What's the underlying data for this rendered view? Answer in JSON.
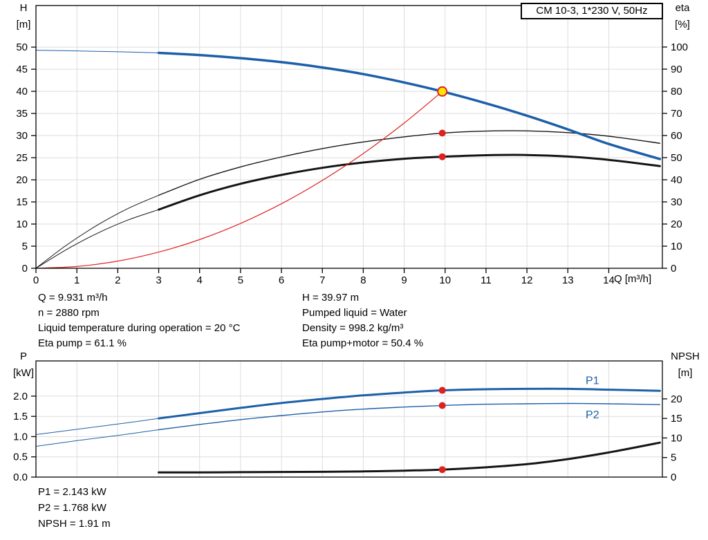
{
  "model_box": "CM 10-3, 1*230 V, 50Hz",
  "colors": {
    "blue": "#1c5fa8",
    "black": "#141414",
    "red": "#e01f1f",
    "duty_fill": "#ffe600",
    "grid": "#dcdcdc",
    "frame": "#000000"
  },
  "annotations": {
    "left": [
      "Q = 9.931 m³/h",
      "n = 2880 rpm",
      "Liquid temperature during operation = 20 °C",
      "Eta pump = 61.1 %"
    ],
    "right": [
      "H = 39.97 m",
      "Pumped liquid = Water",
      "Density = 998.2 kg/m³",
      "Eta pump+motor = 50.4 %"
    ],
    "bottom": [
      "P1 = 2.143 kW",
      "P2 = 1.768 kW",
      "NPSH = 1.91 m"
    ]
  },
  "chart_data": [
    {
      "type": "line",
      "name": "qh-eta-chart",
      "title": "CM 10-3, 1*230 V, 50Hz",
      "x_axis": {
        "label": "Q [m³/h]",
        "min": 0,
        "max": 15.31,
        "ticks": [
          0,
          1,
          2,
          3,
          4,
          5,
          6,
          7,
          8,
          9,
          10,
          11,
          12,
          13,
          14
        ],
        "show_labels": true
      },
      "y_left": {
        "label": "H",
        "unit": "[m]",
        "min": 0,
        "max": 59.4,
        "ticks": [
          0,
          5,
          10,
          15,
          20,
          25,
          30,
          35,
          40,
          45,
          50
        ]
      },
      "y_right": {
        "label": "eta",
        "unit": "[%]",
        "min": 0,
        "max": 118.75,
        "ticks": [
          0,
          10,
          20,
          30,
          40,
          50,
          60,
          70,
          80,
          90,
          100
        ]
      },
      "series": [
        {
          "name": "eta-pump-min-flow",
          "axis": "right",
          "color": "black",
          "width": 1,
          "points": [
            [
              0,
              0
            ],
            [
              0.75,
              10.5
            ],
            [
              1.5,
              19.5
            ],
            [
              2.25,
              27
            ],
            [
              3,
              33
            ]
          ]
        },
        {
          "name": "eta-pump-curve",
          "axis": "right",
          "color": "black",
          "width": 1.4,
          "points": [
            [
              3,
              33
            ],
            [
              4,
              40.2
            ],
            [
              5,
              45.8
            ],
            [
              6,
              50.3
            ],
            [
              7,
              54.1
            ],
            [
              8,
              57.1
            ],
            [
              9,
              59.4
            ],
            [
              9.931,
              61.1
            ],
            [
              11,
              62
            ],
            [
              12,
              62.1
            ],
            [
              13,
              61.3
            ],
            [
              14,
              59.7
            ],
            [
              15.25,
              56.5
            ]
          ]
        },
        {
          "name": "eta-pump-motor-min-flow",
          "axis": "right",
          "color": "black",
          "width": 1,
          "points": [
            [
              0,
              0
            ],
            [
              0.75,
              8.5
            ],
            [
              1.5,
              15.8
            ],
            [
              2.25,
              21.8
            ],
            [
              3,
              26.5
            ]
          ]
        },
        {
          "name": "eta-pump-motor-curve",
          "axis": "right",
          "color": "black",
          "width": 3,
          "points": [
            [
              3,
              26.5
            ],
            [
              4,
              33
            ],
            [
              5,
              38.2
            ],
            [
              6,
              42.2
            ],
            [
              7,
              45.4
            ],
            [
              8,
              47.8
            ],
            [
              9,
              49.5
            ],
            [
              9.931,
              50.4
            ],
            [
              11,
              51.1
            ],
            [
              12,
              51.2
            ],
            [
              13,
              50.5
            ],
            [
              14,
              49
            ],
            [
              15.25,
              46.2
            ]
          ]
        },
        {
          "name": "system-curve",
          "axis": "left",
          "color": "red",
          "width": 1.2,
          "points": [
            [
              0,
              0
            ],
            [
              1,
              0.41
            ],
            [
              2,
              1.62
            ],
            [
              3,
              3.65
            ],
            [
              4,
              6.48
            ],
            [
              5,
              10.13
            ],
            [
              6,
              14.59
            ],
            [
              7,
              19.86
            ],
            [
              8,
              25.94
            ],
            [
              9,
              32.83
            ],
            [
              9.931,
              39.97
            ]
          ]
        },
        {
          "name": "head-curve-min-flow",
          "axis": "left",
          "color": "blue",
          "width": 1,
          "points": [
            [
              0,
              49.3
            ],
            [
              1,
              49.15
            ],
            [
              2,
              48.95
            ],
            [
              3,
              48.7
            ]
          ]
        },
        {
          "name": "head-curve",
          "axis": "left",
          "color": "blue",
          "width": 3.5,
          "points": [
            [
              3,
              48.7
            ],
            [
              4,
              48.2
            ],
            [
              5,
              47.5
            ],
            [
              6,
              46.6
            ],
            [
              7,
              45.4
            ],
            [
              8,
              43.9
            ],
            [
              9,
              42
            ],
            [
              9.931,
              39.97
            ],
            [
              11,
              37.3
            ],
            [
              12,
              34.5
            ],
            [
              13,
              31.4
            ],
            [
              14,
              28.1
            ],
            [
              15.25,
              24.7
            ]
          ]
        }
      ],
      "markers": [
        {
          "name": "eta-pump-point",
          "axis": "right",
          "x": 9.931,
          "y": 61.1,
          "style": "red-dot"
        },
        {
          "name": "eta-pump-motor-point",
          "axis": "right",
          "x": 9.931,
          "y": 50.4,
          "style": "red-dot"
        },
        {
          "name": "duty-point",
          "axis": "left",
          "x": 9.931,
          "y": 39.97,
          "style": "duty"
        }
      ],
      "labels": []
    },
    {
      "type": "line",
      "name": "power-npsh-chart",
      "title": "",
      "x_axis": {
        "label": "",
        "min": 0,
        "max": 15.31,
        "ticks": [
          1,
          2,
          3,
          4,
          5,
          6,
          7,
          8,
          9,
          10,
          11,
          12,
          13,
          14
        ],
        "show_labels": false
      },
      "y_left": {
        "label": "P",
        "unit": "[kW]",
        "min": 0,
        "max": 2.87,
        "ticks": [
          0,
          0.5,
          1,
          1.5,
          2
        ],
        "tick_labels": [
          "0.0",
          "0.5",
          "1.0",
          "1.5",
          "2.0"
        ]
      },
      "y_right": {
        "label": "NPSH",
        "unit": "[m]",
        "min": 0,
        "max": 29.7,
        "ticks": [
          0,
          5,
          10,
          15,
          20
        ]
      },
      "series": [
        {
          "name": "p2-min-flow",
          "axis": "left",
          "color": "blue",
          "width": 1,
          "points": [
            [
              0,
              0.76
            ],
            [
              1,
              0.9
            ],
            [
              2,
              1.03
            ],
            [
              3,
              1.17
            ]
          ]
        },
        {
          "name": "p2-curve",
          "axis": "left",
          "color": "blue",
          "width": 1.4,
          "points": [
            [
              3,
              1.17
            ],
            [
              4,
              1.3
            ],
            [
              5,
              1.42
            ],
            [
              6,
              1.52
            ],
            [
              7,
              1.61
            ],
            [
              8,
              1.68
            ],
            [
              9,
              1.73
            ],
            [
              9.931,
              1.768
            ],
            [
              11,
              1.8
            ],
            [
              12,
              1.81
            ],
            [
              13,
              1.82
            ],
            [
              14,
              1.81
            ],
            [
              15.25,
              1.79
            ]
          ]
        },
        {
          "name": "p1-min-flow",
          "axis": "left",
          "color": "blue",
          "width": 1,
          "points": [
            [
              0,
              1.05
            ],
            [
              1,
              1.18
            ],
            [
              2,
              1.31
            ],
            [
              3,
              1.45
            ]
          ]
        },
        {
          "name": "p1-curve",
          "axis": "left",
          "color": "blue",
          "width": 3,
          "points": [
            [
              3,
              1.45
            ],
            [
              4,
              1.58
            ],
            [
              5,
              1.71
            ],
            [
              6,
              1.83
            ],
            [
              7,
              1.93
            ],
            [
              8,
              2.02
            ],
            [
              9,
              2.09
            ],
            [
              9.931,
              2.143
            ],
            [
              11,
              2.17
            ],
            [
              12,
              2.18
            ],
            [
              13,
              2.18
            ],
            [
              14,
              2.16
            ],
            [
              15.25,
              2.13
            ]
          ]
        },
        {
          "name": "npsh-curve",
          "axis": "right",
          "color": "black",
          "width": 3,
          "points": [
            [
              3,
              1.2
            ],
            [
              4,
              1.2
            ],
            [
              5,
              1.25
            ],
            [
              6,
              1.3
            ],
            [
              7,
              1.35
            ],
            [
              8,
              1.45
            ],
            [
              9,
              1.65
            ],
            [
              9.931,
              1.91
            ],
            [
              11,
              2.5
            ],
            [
              12,
              3.3
            ],
            [
              13,
              4.6
            ],
            [
              14,
              6.3
            ],
            [
              15.25,
              8.8
            ]
          ]
        }
      ],
      "markers": [
        {
          "name": "p1-point",
          "axis": "left",
          "x": 9.931,
          "y": 2.143,
          "style": "red-dot"
        },
        {
          "name": "p2-point",
          "axis": "left",
          "x": 9.931,
          "y": 1.768,
          "style": "red-dot"
        },
        {
          "name": "npsh-point",
          "axis": "right",
          "x": 9.931,
          "y": 1.91,
          "style": "red-dot"
        }
      ],
      "labels": [
        {
          "text": "P1",
          "x": 13.6,
          "y": 2.3,
          "axis": "left",
          "color": "blue"
        },
        {
          "text": "P2",
          "x": 13.6,
          "y": 1.45,
          "axis": "left",
          "color": "blue"
        }
      ]
    }
  ]
}
